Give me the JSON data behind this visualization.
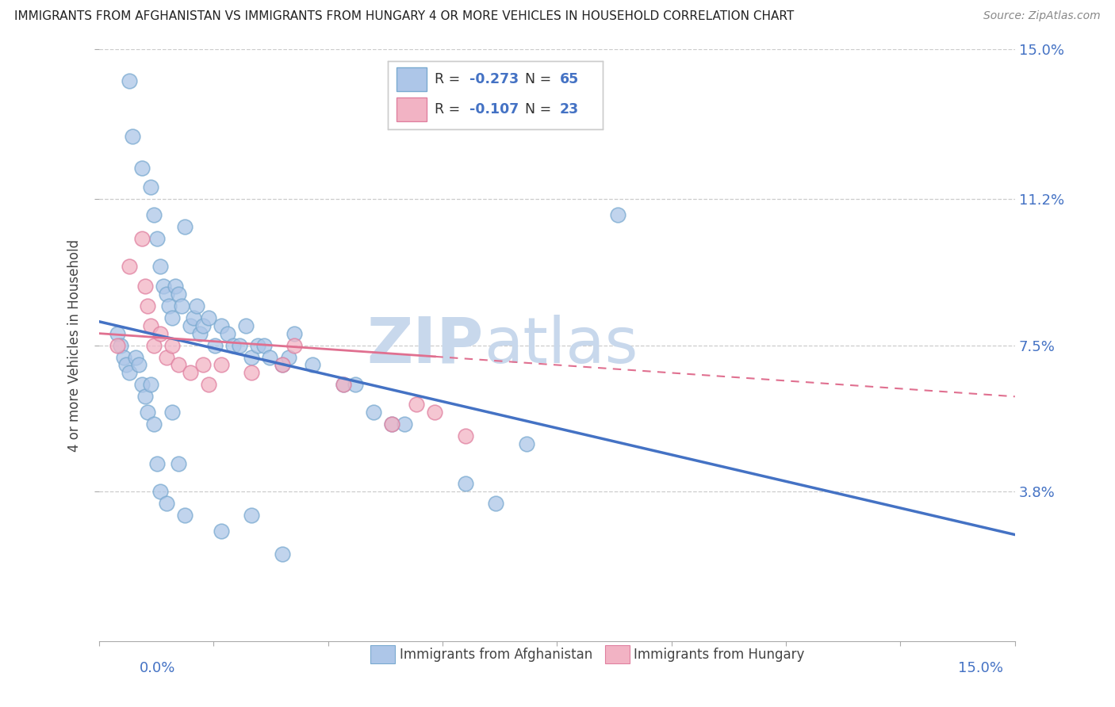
{
  "title": "IMMIGRANTS FROM AFGHANISTAN VS IMMIGRANTS FROM HUNGARY 4 OR MORE VEHICLES IN HOUSEHOLD CORRELATION CHART",
  "source": "Source: ZipAtlas.com",
  "ylabel": "4 or more Vehicles in Household",
  "x_min": 0.0,
  "x_max": 15.0,
  "y_min": 0.0,
  "y_max": 15.0,
  "y_ticks": [
    3.8,
    7.5,
    11.2,
    15.0
  ],
  "y_tick_labels": [
    "3.8%",
    "7.5%",
    "11.2%",
    "15.0%"
  ],
  "afghanistan_color": "#adc6e8",
  "hungary_color": "#f2b3c4",
  "afghanistan_edge_color": "#7aaad0",
  "hungary_edge_color": "#e080a0",
  "afghanistan_line_color": "#4472c4",
  "hungary_line_color": "#e07090",
  "afghanistan_R": -0.273,
  "afghanistan_N": 65,
  "hungary_R": -0.107,
  "hungary_N": 23,
  "watermark_zip": "ZIP",
  "watermark_atlas": "atlas",
  "watermark_color": "#c8d8ec",
  "background_color": "#ffffff",
  "legend_label_afghanistan": "Immigrants from Afghanistan",
  "legend_label_hungary": "Immigrants from Hungary",
  "grid_color": "#cccccc",
  "title_color": "#222222",
  "source_color": "#888888",
  "axis_label_color": "#444444",
  "tick_label_color": "#555555",
  "right_tick_color": "#4472c4",
  "afg_line_y_start": 8.1,
  "afg_line_y_end": 2.7,
  "hun_line_y_start": 7.8,
  "hun_line_y_end": 6.2,
  "hun_line_solid_end_x": 5.5,
  "afghanistan_x": [
    0.5,
    0.55,
    0.7,
    0.85,
    0.9,
    0.95,
    1.0,
    1.05,
    1.1,
    1.15,
    1.2,
    1.25,
    1.3,
    1.35,
    1.4,
    1.5,
    1.55,
    1.6,
    1.65,
    1.7,
    1.8,
    1.9,
    2.0,
    2.1,
    2.2,
    2.3,
    2.4,
    2.5,
    2.6,
    2.7,
    2.8,
    3.0,
    3.1,
    3.2,
    3.5,
    4.0,
    4.2,
    4.5,
    4.8,
    5.0,
    6.0,
    6.5,
    7.0,
    8.5,
    0.3,
    0.35,
    0.4,
    0.45,
    0.5,
    0.6,
    0.65,
    0.7,
    0.75,
    0.8,
    0.85,
    0.9,
    0.95,
    1.0,
    1.1,
    1.2,
    1.3,
    1.4,
    2.0,
    2.5,
    3.0
  ],
  "afghanistan_y": [
    14.2,
    12.8,
    12.0,
    11.5,
    10.8,
    10.2,
    9.5,
    9.0,
    8.8,
    8.5,
    8.2,
    9.0,
    8.8,
    8.5,
    10.5,
    8.0,
    8.2,
    8.5,
    7.8,
    8.0,
    8.2,
    7.5,
    8.0,
    7.8,
    7.5,
    7.5,
    8.0,
    7.2,
    7.5,
    7.5,
    7.2,
    7.0,
    7.2,
    7.8,
    7.0,
    6.5,
    6.5,
    5.8,
    5.5,
    5.5,
    4.0,
    3.5,
    5.0,
    10.8,
    7.8,
    7.5,
    7.2,
    7.0,
    6.8,
    7.2,
    7.0,
    6.5,
    6.2,
    5.8,
    6.5,
    5.5,
    4.5,
    3.8,
    3.5,
    5.8,
    4.5,
    3.2,
    2.8,
    3.2,
    2.2
  ],
  "hungary_x": [
    0.3,
    0.5,
    0.7,
    0.75,
    0.8,
    0.85,
    0.9,
    1.0,
    1.1,
    1.2,
    1.3,
    1.5,
    1.7,
    1.8,
    2.0,
    2.5,
    3.0,
    3.2,
    4.0,
    4.8,
    5.2,
    5.5,
    6.0
  ],
  "hungary_y": [
    7.5,
    9.5,
    10.2,
    9.0,
    8.5,
    8.0,
    7.5,
    7.8,
    7.2,
    7.5,
    7.0,
    6.8,
    7.0,
    6.5,
    7.0,
    6.8,
    7.0,
    7.5,
    6.5,
    5.5,
    6.0,
    5.8,
    5.2
  ]
}
